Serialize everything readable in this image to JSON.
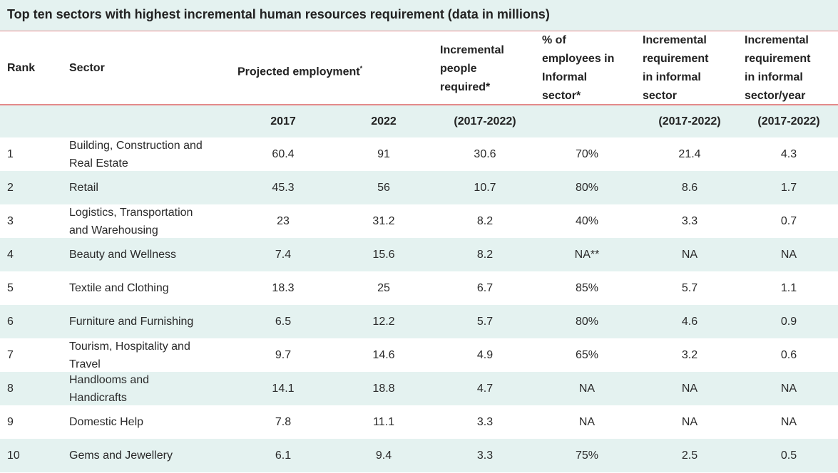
{
  "title": "Top ten sectors with highest incremental human resources requirement (data in millions)",
  "columns": {
    "rank": "Rank",
    "sector": "Sector",
    "projected": "Projected employment",
    "projected_mark": "*",
    "incremental": [
      "Incremental",
      "people",
      "required*"
    ],
    "pct_informal": [
      "% of",
      "employees in",
      "Informal",
      "sector*"
    ],
    "inc_informal": [
      "Incremental",
      "requirement",
      "in informal",
      "sector"
    ],
    "inc_informal_year": [
      "Incremental",
      "requirement",
      "in informal",
      "sector/year"
    ]
  },
  "subheader": {
    "y2017": "2017",
    "y2022": "2022",
    "incremental_period": "(2017-2022)",
    "informal_period": "(2017-2022)",
    "informal_year_period": "(2017-2022)"
  },
  "chart_data": {
    "type": "table",
    "title": "Top ten sectors with highest incremental human resources requirement (data in millions)",
    "rows": [
      {
        "rank": "1",
        "sector": [
          "Building, Construction and",
          "Real Estate"
        ],
        "y2017": "60.4",
        "y2022": "91",
        "incremental": "30.6",
        "pct_informal": "70%",
        "inc_informal": "21.4",
        "inc_informal_year": "4.3"
      },
      {
        "rank": "2",
        "sector": [
          "Retail"
        ],
        "y2017": "45.3",
        "y2022": "56",
        "incremental": "10.7",
        "pct_informal": "80%",
        "inc_informal": "8.6",
        "inc_informal_year": "1.7"
      },
      {
        "rank": "3",
        "sector": [
          "Logistics, Transportation",
          "and Warehousing"
        ],
        "y2017": "23",
        "y2022": "31.2",
        "incremental": "8.2",
        "pct_informal": "40%",
        "inc_informal": "3.3",
        "inc_informal_year": "0.7"
      },
      {
        "rank": "4",
        "sector": [
          "Beauty and Wellness"
        ],
        "y2017": "7.4",
        "y2022": "15.6",
        "incremental": "8.2",
        "pct_informal": "NA**",
        "inc_informal": "NA",
        "inc_informal_year": "NA"
      },
      {
        "rank": "5",
        "sector": [
          "Textile and Clothing"
        ],
        "y2017": "18.3",
        "y2022": "25",
        "incremental": "6.7",
        "pct_informal": "85%",
        "inc_informal": "5.7",
        "inc_informal_year": "1.1"
      },
      {
        "rank": "6",
        "sector": [
          "Furniture and Furnishing"
        ],
        "y2017": "6.5",
        "y2022": "12.2",
        "incremental": "5.7",
        "pct_informal": "80%",
        "inc_informal": "4.6",
        "inc_informal_year": "0.9"
      },
      {
        "rank": "7",
        "sector": [
          "Tourism, Hospitality and",
          "Travel"
        ],
        "y2017": "9.7",
        "y2022": "14.6",
        "incremental": "4.9",
        "pct_informal": "65%",
        "inc_informal": "3.2",
        "inc_informal_year": "0.6"
      },
      {
        "rank": "8",
        "sector": [
          "Handlooms and",
          "Handicrafts"
        ],
        "y2017": "14.1",
        "y2022": "18.8",
        "incremental": "4.7",
        "pct_informal": "NA",
        "inc_informal": "NA",
        "inc_informal_year": "NA"
      },
      {
        "rank": "9",
        "sector": [
          "Domestic Help"
        ],
        "y2017": "7.8",
        "y2022": "11.1",
        "incremental": "3.3",
        "pct_informal": "NA",
        "inc_informal": "NA",
        "inc_informal_year": "NA"
      },
      {
        "rank": "10",
        "sector": [
          "Gems and Jewellery"
        ],
        "y2017": "6.1",
        "y2022": "9.4",
        "incremental": "3.3",
        "pct_informal": "75%",
        "inc_informal": "2.5",
        "inc_informal_year": "0.5"
      }
    ]
  }
}
